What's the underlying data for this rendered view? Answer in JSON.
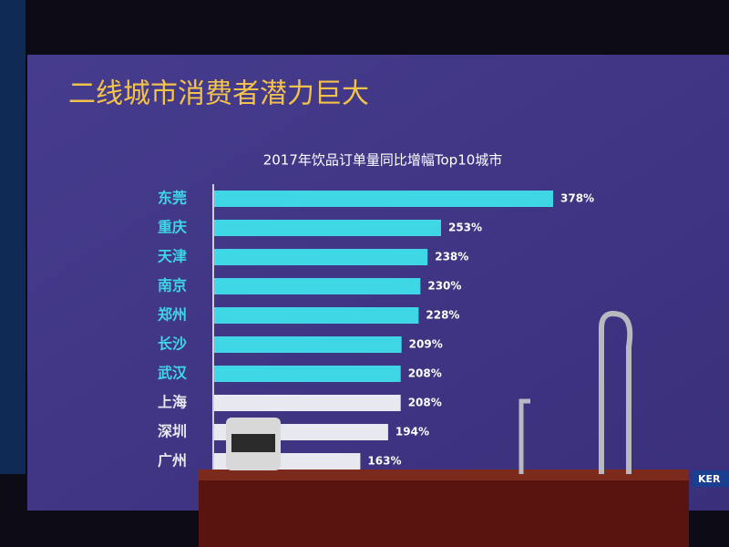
{
  "chart_data": {
    "type": "bar",
    "orientation": "horizontal",
    "title": "二线城市消费者潜力巨大",
    "subtitle": "2017年饮品订单量同比增幅Top10城市",
    "categories": [
      "东莞",
      "重庆",
      "天津",
      "南京",
      "郑州",
      "长沙",
      "武汉",
      "上海",
      "深圳",
      "广州"
    ],
    "values": [
      378,
      253,
      238,
      230,
      228,
      209,
      208,
      208,
      194,
      163
    ],
    "value_labels": [
      "378%",
      "253%",
      "238%",
      "230%",
      "228%",
      "209%",
      "208%",
      "208%",
      "194%",
      "163%"
    ],
    "colors": [
      "#3fd6e6",
      "#3fd6e6",
      "#3fd6e6",
      "#3fd6e6",
      "#3fd6e6",
      "#3fd6e6",
      "#3fd6e6",
      "#e8e8f0",
      "#e8e8f0",
      "#e8e8f0"
    ]
  },
  "sign": "KER"
}
